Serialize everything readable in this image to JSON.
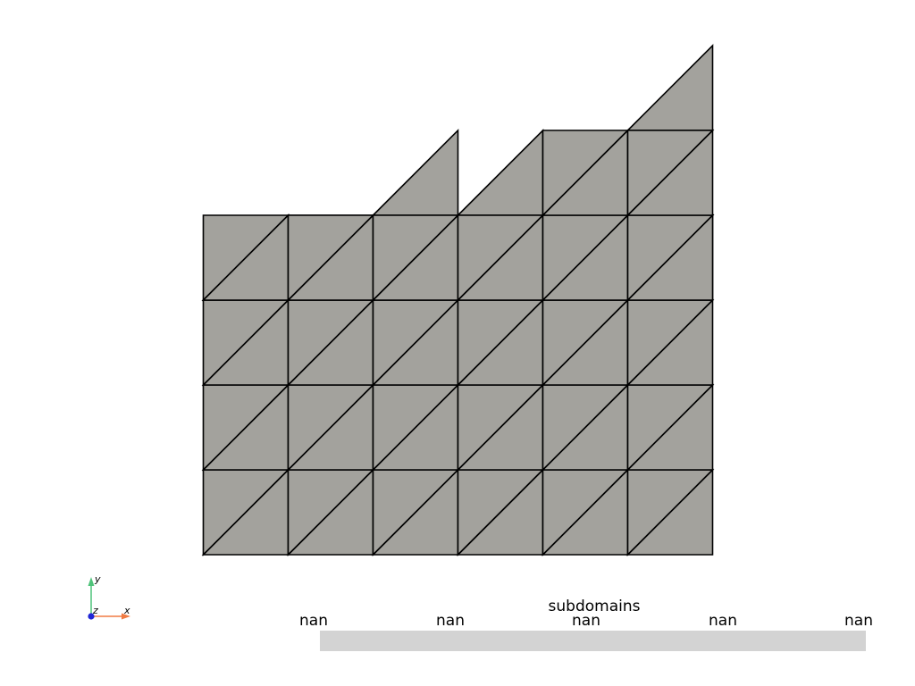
{
  "colors": {
    "background": "#ffffff",
    "mesh_fill": "#a3a29d",
    "mesh_edge": "#000000",
    "scalar_bar_fill": "#d3d3d3",
    "axis_x": "#f07b43",
    "axis_y": "#4fc37a",
    "axis_z": "#1f26d6"
  },
  "mesh": {
    "columns": 6,
    "rows": 4,
    "column_heights": [
      3,
      4,
      5,
      5,
      6,
      6
    ],
    "triangulation": "right-diagonal",
    "cap_triangles": [
      {
        "column": 0,
        "row": 3
      },
      {
        "column": 2,
        "row": 4
      },
      {
        "column": 3,
        "row": 4
      },
      {
        "column": 5,
        "row": 5
      }
    ]
  },
  "orientation_axes": {
    "x_label": "x",
    "y_label": "y",
    "z_label": "z"
  },
  "scalar_bar": {
    "title": "subdomains",
    "tick_labels": [
      "nan",
      "nan",
      "nan",
      "nan",
      "nan"
    ]
  }
}
